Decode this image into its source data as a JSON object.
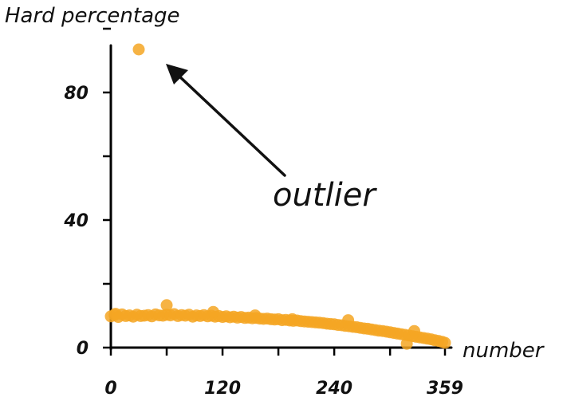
{
  "chart_data": {
    "type": "scatter",
    "title": "",
    "ylabel": "Hard percentage",
    "xlabel": "number",
    "xlim": [
      0,
      359
    ],
    "ylim": [
      0,
      100
    ],
    "x_ticks": [
      0,
      120,
      240,
      359
    ],
    "y_ticks": [
      0,
      40,
      80
    ],
    "y_minor_ticks": [
      20,
      60,
      100
    ],
    "x_minor_ticks": [
      60,
      180,
      300
    ],
    "point_color": "#F5A623",
    "series": [
      {
        "name": "hard percentage",
        "x": [
          0,
          4,
          8,
          12,
          16,
          20,
          24,
          28,
          32,
          36,
          40,
          44,
          48,
          52,
          56,
          60,
          64,
          68,
          72,
          76,
          80,
          84,
          88,
          92,
          96,
          100,
          104,
          108,
          112,
          116,
          120,
          124,
          128,
          132,
          136,
          140,
          144,
          148,
          152,
          156,
          160,
          164,
          168,
          172,
          176,
          180,
          184,
          188,
          192,
          196,
          200,
          204,
          208,
          212,
          216,
          220,
          224,
          228,
          232,
          236,
          240,
          244,
          248,
          252,
          256,
          260,
          264,
          268,
          272,
          276,
          280,
          284,
          288,
          292,
          296,
          300,
          304,
          308,
          312,
          316,
          320,
          324,
          328,
          332,
          336,
          340,
          344,
          348,
          352,
          356,
          359,
          5,
          30,
          60,
          110,
          155,
          195,
          255,
          318,
          326
        ],
        "y": [
          9.8,
          10.2,
          9.6,
          10.4,
          9.9,
          10.1,
          9.7,
          10.3,
          9.9,
          10.0,
          10.2,
          9.8,
          10.4,
          10.1,
          10.0,
          10.3,
          10.1,
          10.5,
          9.9,
          10.2,
          10.0,
          10.3,
          9.7,
          10.1,
          9.9,
          10.2,
          9.8,
          10.0,
          9.7,
          9.9,
          9.6,
          9.8,
          9.5,
          9.7,
          9.4,
          9.6,
          9.3,
          9.4,
          9.2,
          9.3,
          9.1,
          9.0,
          9.1,
          8.9,
          8.8,
          8.9,
          8.6,
          8.7,
          8.5,
          8.4,
          8.5,
          8.3,
          8.2,
          8.1,
          8.0,
          7.9,
          7.8,
          7.7,
          7.5,
          7.4,
          7.3,
          7.1,
          7.0,
          6.8,
          6.7,
          6.5,
          6.4,
          6.2,
          6.0,
          5.9,
          5.7,
          5.5,
          5.3,
          5.2,
          5.0,
          4.8,
          4.6,
          4.4,
          4.2,
          4.0,
          3.8,
          3.6,
          3.4,
          3.2,
          3.0,
          2.8,
          2.6,
          2.3,
          2.1,
          1.8,
          1.5,
          10.6,
          93.5,
          13.3,
          11.2,
          10.1,
          8.9,
          8.6,
          1.2,
          5.2
        ],
        "outlier": {
          "x": 30,
          "y": 93.5
        }
      }
    ],
    "annotation": {
      "text": "outlier",
      "arrow_to": {
        "x": 30,
        "y": 93.5
      }
    }
  }
}
